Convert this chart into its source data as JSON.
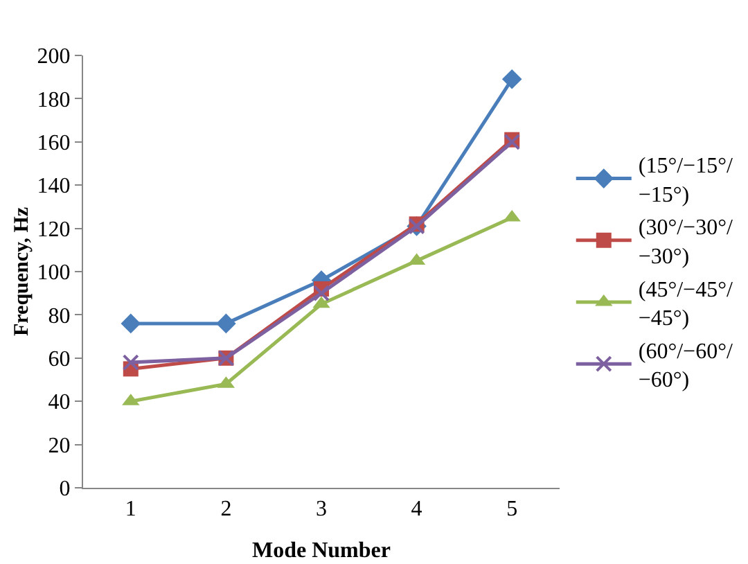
{
  "chart_data": {
    "type": "line",
    "xlabel": "Mode Number",
    "ylabel": "Frequency, Hz",
    "categories": [
      "1",
      "2",
      "3",
      "4",
      "5"
    ],
    "series": [
      {
        "name": "(15°/−15°/−15°)",
        "color": "#4a7ebb",
        "marker": "diamond",
        "values": [
          76,
          76,
          96,
          121,
          189
        ]
      },
      {
        "name": "(30°/−30°/−30°)",
        "color": "#be4b48",
        "marker": "square",
        "values": [
          55,
          60,
          92,
          122,
          161
        ]
      },
      {
        "name": "(45°/−45°/−45°)",
        "color": "#98b954",
        "marker": "triangle",
        "values": [
          40,
          48,
          85,
          105,
          125
        ]
      },
      {
        "name": "(60°/−60°/−60°)",
        "color": "#7d60a0",
        "marker": "cross",
        "values": [
          58,
          60,
          90,
          121,
          160
        ]
      }
    ],
    "ylim": [
      0,
      200
    ],
    "yticks": [
      0,
      20,
      40,
      60,
      80,
      100,
      120,
      140,
      160,
      180,
      200
    ],
    "legend": "right",
    "line_style": "solid"
  }
}
